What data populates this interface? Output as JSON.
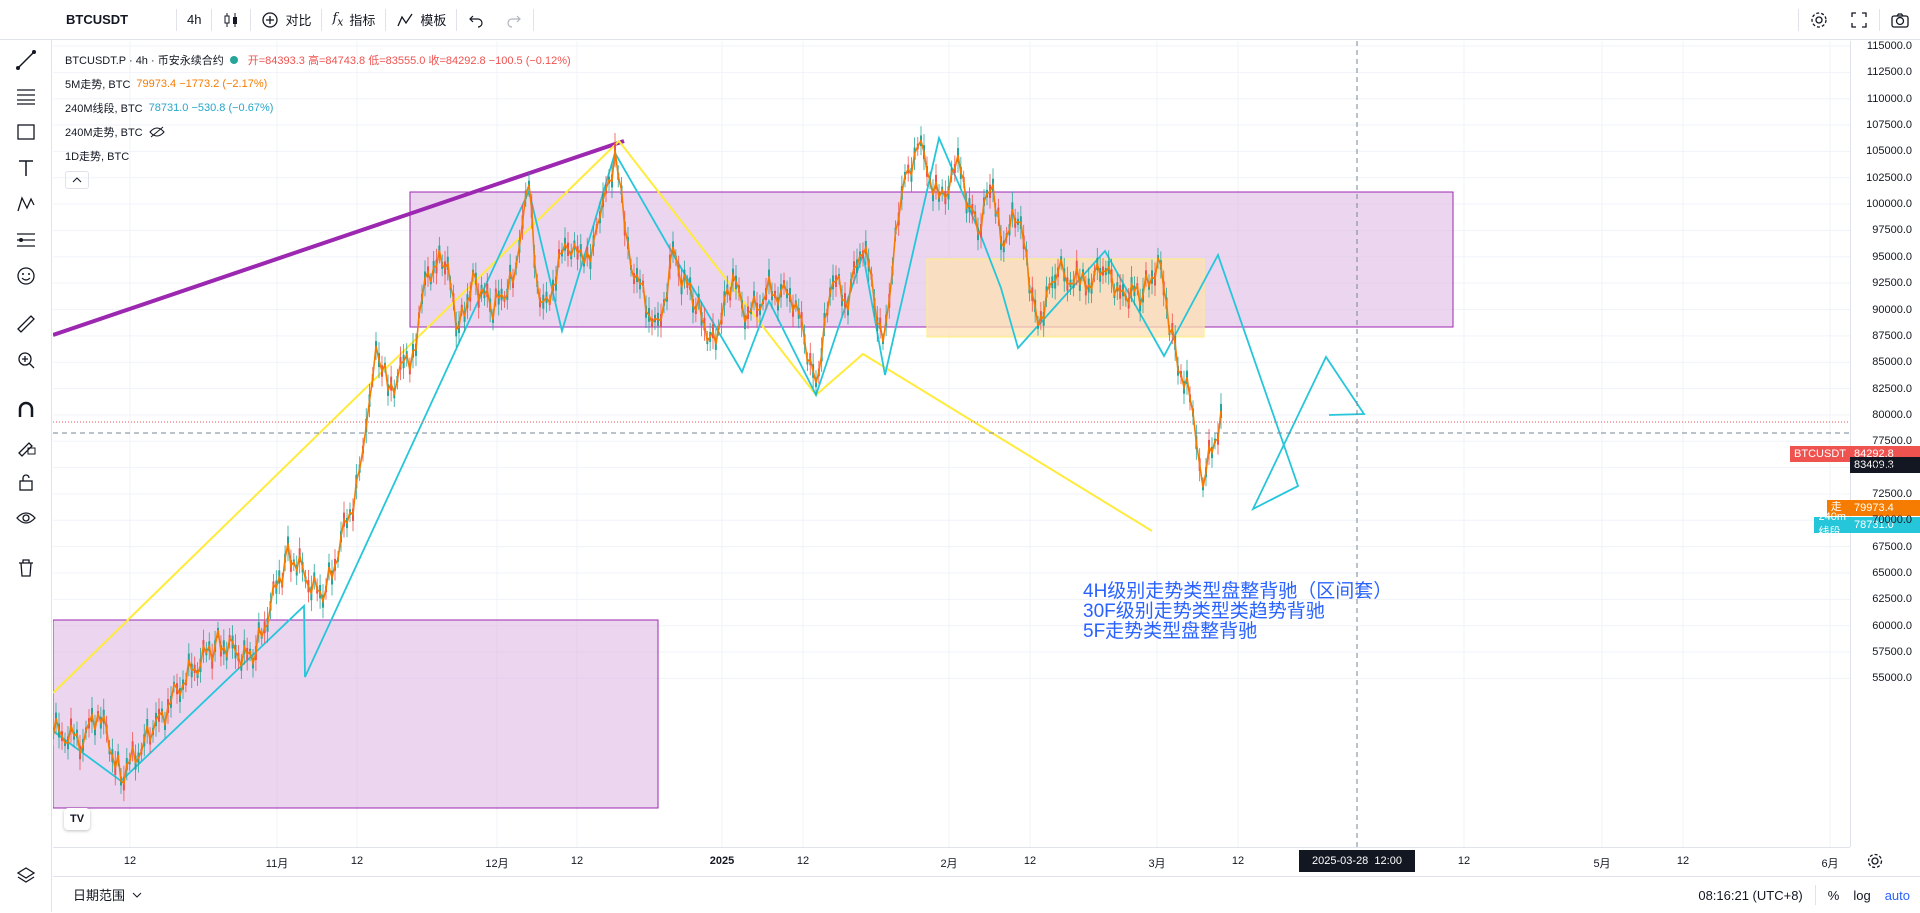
{
  "toolbar": {
    "symbol": "BTCUSDT",
    "interval": "4h",
    "compare_label": "对比",
    "indicators_label": "指标",
    "templates_label": "模板"
  },
  "legend": {
    "main_title": "BTCUSDT.P · 4h · 币安永续合约",
    "ohlc": "开=84393.3 高=84743.8 低=83555.0 收=84292.8 −100.5 (−0.12%)",
    "rows": [
      {
        "name": "5M走势, BTC",
        "value": "79973.4 −1773.2 (−2.17%)"
      },
      {
        "name": "240M线段, BTC",
        "value": "78731.0 −530.8 (−0.67%)"
      },
      {
        "name": "240M走势, BTC",
        "value": ""
      },
      {
        "name": "1D走势, BTC",
        "value": ""
      }
    ]
  },
  "price_axis": {
    "ticks": [
      "115000.0",
      "112500.0",
      "110000.0",
      "107500.0",
      "105000.0",
      "102500.0",
      "100000.0",
      "97500.0",
      "95000.0",
      "92500.0",
      "90000.0",
      "87500.0",
      "85000.0",
      "82500.0",
      "80000.0",
      "77500.0",
      "75000.0",
      "72500.0",
      "70000.0",
      "67500.0",
      "65000.0",
      "62500.0",
      "60000.0",
      "57500.0",
      "55000.0"
    ],
    "last_price_tag": "BTCUSDT",
    "last_price": "84292.8",
    "cursor_price": "83409.3",
    "series_tags": [
      {
        "name": "5M走势",
        "value": "79973.4"
      },
      {
        "name": "240m线段",
        "value": "78731.0"
      }
    ]
  },
  "time_axis": {
    "ticks": [
      "12",
      "11月",
      "12",
      "12月",
      "12",
      "2025",
      "12",
      "2月",
      "12",
      "3月",
      "12",
      "12",
      "5月",
      "12",
      "6月"
    ],
    "cursor_label": "2025-03-28  12:00"
  },
  "annotation": {
    "lines": [
      "4H级别走势类型盘整背驰（区间套）",
      "30F级别走势类型类趋势背驰",
      "5F走势类型盘整背驰"
    ]
  },
  "bottombar": {
    "date_range": "日期范围",
    "clock": "08:16:21 (UTC+8)",
    "percent": "%",
    "log": "log",
    "auto": "auto"
  },
  "colors": {
    "orange": "#f57c00",
    "cyan": "#26c6da",
    "yellow": "#ffeb3b",
    "purple": "#9c27b0",
    "box_fill": "#e1bee7"
  }
}
